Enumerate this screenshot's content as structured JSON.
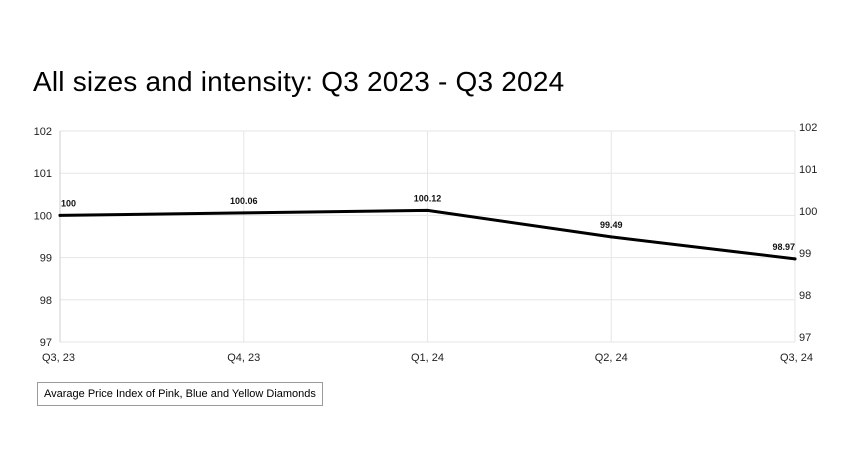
{
  "chart_data": {
    "type": "line",
    "title": "All sizes and intensity: Q3 2023 - Q3 2024",
    "categories": [
      "Q3, 23",
      "Q4, 23",
      "Q1, 24",
      "Q2, 24",
      "Q3, 24"
    ],
    "series": [
      {
        "name": "Avarage Price Index of Pink, Blue and Yellow Diamonds",
        "values": [
          100,
          100.06,
          100.12,
          99.49,
          98.97
        ],
        "labels": [
          "100",
          "100.06",
          "100.12",
          "99.49",
          "98.97"
        ],
        "color": "#000000"
      }
    ],
    "ylim": [
      97,
      102
    ],
    "yticks": [
      "97",
      "98",
      "99",
      "100",
      "101",
      "102"
    ],
    "y_axis_sides": "left and right",
    "grid": true,
    "gridline_color": "#e6e6e6",
    "legend_placement": "bottom-left"
  }
}
